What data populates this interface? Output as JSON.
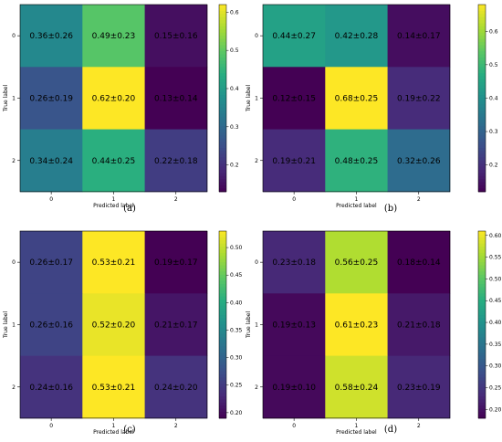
{
  "figure": {
    "panel_labels": [
      "(a)",
      "(b)",
      "(c)",
      "(d)"
    ]
  },
  "chart_data": [
    {
      "type": "heatmap",
      "panel": "(a)",
      "xlabel": "Predicted label",
      "ylabel": "True label",
      "x_ticks": [
        "0",
        "1",
        "2"
      ],
      "y_ticks": [
        "0",
        "1",
        "2"
      ],
      "values": [
        [
          0.36,
          0.49,
          0.15
        ],
        [
          0.26,
          0.62,
          0.13
        ],
        [
          0.34,
          0.44,
          0.22
        ]
      ],
      "cell_labels": [
        [
          "0.36±0.26",
          "0.49±0.23",
          "0.15±0.16"
        ],
        [
          "0.26±0.19",
          "0.62±0.20",
          "0.13±0.14"
        ],
        [
          "0.34±0.24",
          "0.44±0.25",
          "0.22±0.18"
        ]
      ],
      "colorbar_range": [
        0.13,
        0.62
      ],
      "colorbar_ticks": [
        0.2,
        0.3,
        0.4,
        0.5,
        0.6
      ],
      "colorbar_tick_labels": [
        "0.2",
        "0.3",
        "0.4",
        "0.5",
        "0.6"
      ],
      "colormap": "viridis"
    },
    {
      "type": "heatmap",
      "panel": "(b)",
      "xlabel": "Predicted label",
      "ylabel": "True label",
      "x_ticks": [
        "0",
        "1",
        "2"
      ],
      "y_ticks": [
        "0",
        "1",
        "2"
      ],
      "values": [
        [
          0.44,
          0.42,
          0.14
        ],
        [
          0.12,
          0.68,
          0.19
        ],
        [
          0.19,
          0.48,
          0.32
        ]
      ],
      "cell_labels": [
        [
          "0.44±0.27",
          "0.42±0.28",
          "0.14±0.17"
        ],
        [
          "0.12±0.15",
          "0.68±0.25",
          "0.19±0.22"
        ],
        [
          "0.19±0.21",
          "0.48±0.25",
          "0.32±0.26"
        ]
      ],
      "colorbar_range": [
        0.12,
        0.68
      ],
      "colorbar_ticks": [
        0.2,
        0.3,
        0.4,
        0.5,
        0.6
      ],
      "colorbar_tick_labels": [
        "0.2",
        "0.3",
        "0.4",
        "0.5",
        "0.6"
      ],
      "colormap": "viridis"
    },
    {
      "type": "heatmap",
      "panel": "(c)",
      "xlabel": "Predicted label",
      "ylabel": "True label",
      "x_ticks": [
        "0",
        "1",
        "2"
      ],
      "y_ticks": [
        "0",
        "1",
        "2"
      ],
      "values": [
        [
          0.26,
          0.53,
          0.19
        ],
        [
          0.26,
          0.52,
          0.21
        ],
        [
          0.24,
          0.53,
          0.24
        ]
      ],
      "cell_labels": [
        [
          "0.26±0.17",
          "0.53±0.21",
          "0.19±0.17"
        ],
        [
          "0.26±0.16",
          "0.52±0.20",
          "0.21±0.17"
        ],
        [
          "0.24±0.16",
          "0.53±0.21",
          "0.24±0.20"
        ]
      ],
      "colorbar_range": [
        0.19,
        0.53
      ],
      "colorbar_ticks": [
        0.2,
        0.25,
        0.3,
        0.35,
        0.4,
        0.45,
        0.5
      ],
      "colorbar_tick_labels": [
        "0.20",
        "0.25",
        "0.30",
        "0.35",
        "0.40",
        "0.45",
        "0.50"
      ],
      "colormap": "viridis"
    },
    {
      "type": "heatmap",
      "panel": "(d)",
      "xlabel": "Predicted label",
      "ylabel": "True label",
      "x_ticks": [
        "0",
        "1",
        "2"
      ],
      "y_ticks": [
        "0",
        "1",
        "2"
      ],
      "values": [
        [
          0.23,
          0.56,
          0.18
        ],
        [
          0.19,
          0.61,
          0.21
        ],
        [
          0.19,
          0.58,
          0.23
        ]
      ],
      "cell_labels": [
        [
          "0.23±0.18",
          "0.56±0.25",
          "0.18±0.14"
        ],
        [
          "0.19±0.13",
          "0.61±0.23",
          "0.21±0.18"
        ],
        [
          "0.19±0.10",
          "0.58±0.24",
          "0.23±0.19"
        ]
      ],
      "colorbar_range": [
        0.18,
        0.61
      ],
      "colorbar_ticks": [
        0.2,
        0.25,
        0.3,
        0.35,
        0.4,
        0.45,
        0.5,
        0.55,
        0.6
      ],
      "colorbar_tick_labels": [
        "0.20",
        "0.25",
        "0.30",
        "0.35",
        "0.40",
        "0.45",
        "0.50",
        "0.55",
        "0.60"
      ],
      "colormap": "viridis"
    }
  ]
}
